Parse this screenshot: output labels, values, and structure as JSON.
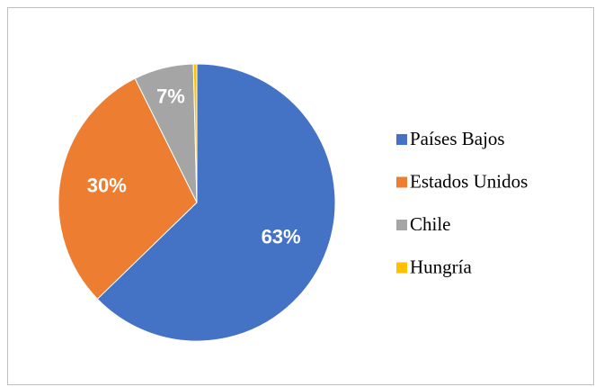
{
  "chart_data": {
    "type": "pie",
    "categories": [
      "Países Bajos",
      "Estados Unidos",
      "Chile",
      "Hungría"
    ],
    "values": [
      63,
      30,
      7,
      0.4
    ],
    "value_labels": [
      "63%",
      "30%",
      "7%",
      null
    ],
    "colors": [
      "#4472c4",
      "#ed7d31",
      "#a5a5a5",
      "#ffc000"
    ],
    "legend": "right"
  }
}
